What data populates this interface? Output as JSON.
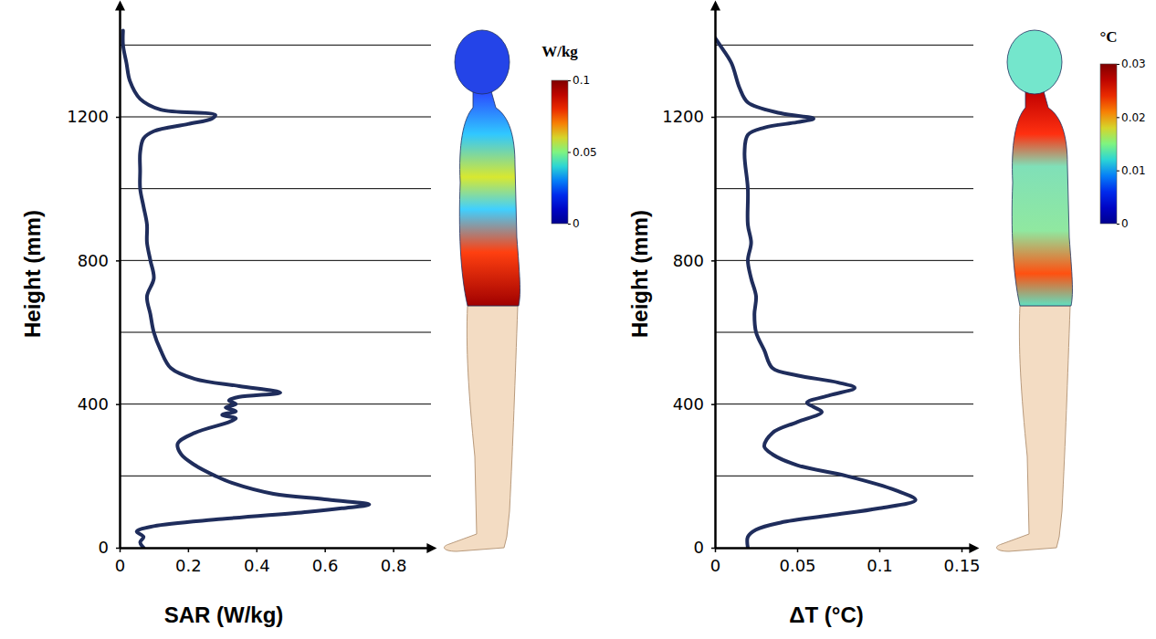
{
  "chart_data": [
    {
      "type": "line",
      "x_label": "SAR (W/kg)",
      "y_label": "Height (mm)",
      "xlim": [
        0,
        0.9
      ],
      "xticks": [
        0,
        0.2,
        0.4,
        0.6,
        0.8
      ],
      "ylim": [
        0,
        1500
      ],
      "yticks": [
        0,
        400,
        800,
        1200
      ],
      "grid": true,
      "ygrid": [
        200,
        400,
        600,
        800,
        1000,
        1200,
        1400
      ],
      "color": "#1f2d5c",
      "x": [
        0.07,
        0.06,
        0.07,
        0.05,
        0.1,
        0.3,
        0.55,
        0.65,
        0.73,
        0.6,
        0.45,
        0.33,
        0.28,
        0.22,
        0.18,
        0.17,
        0.22,
        0.32,
        0.34,
        0.3,
        0.34,
        0.31,
        0.34,
        0.32,
        0.35,
        0.47,
        0.35,
        0.22,
        0.15,
        0.12,
        0.1,
        0.09,
        0.08,
        0.1,
        0.09,
        0.08,
        0.08,
        0.07,
        0.06,
        0.06,
        0.06,
        0.07,
        0.1,
        0.2,
        0.27,
        0.28,
        0.12,
        0.06,
        0.03,
        0.02,
        0.01,
        0.01
      ],
      "values": [
        0,
        15,
        30,
        45,
        60,
        80,
        100,
        110,
        120,
        135,
        150,
        180,
        200,
        230,
        260,
        290,
        320,
        350,
        360,
        370,
        380,
        390,
        400,
        410,
        420,
        432,
        450,
        470,
        500,
        550,
        600,
        650,
        700,
        750,
        800,
        850,
        900,
        950,
        1000,
        1050,
        1100,
        1140,
        1160,
        1180,
        1195,
        1205,
        1220,
        1250,
        1300,
        1350,
        1400,
        1440
      ],
      "colorbar": {
        "label": "W/kg",
        "range": [
          0,
          0.1
        ],
        "ticks": [
          0,
          0.05,
          0.1
        ]
      }
    },
    {
      "type": "line",
      "x_label": "ΔT (°C)",
      "y_label": "Height (mm)",
      "xlim": [
        0,
        0.155
      ],
      "xticks": [
        0,
        0.05,
        0.1,
        0.15
      ],
      "ylim": [
        0,
        1500
      ],
      "yticks": [
        0,
        400,
        800,
        1200
      ],
      "grid": true,
      "ygrid": [
        200,
        400,
        600,
        800,
        1000,
        1200,
        1400
      ],
      "color": "#1f2d5c",
      "x": [
        0.02,
        0.02,
        0.025,
        0.04,
        0.07,
        0.1,
        0.122,
        0.11,
        0.08,
        0.05,
        0.035,
        0.03,
        0.035,
        0.05,
        0.065,
        0.06,
        0.056,
        0.07,
        0.085,
        0.075,
        0.05,
        0.035,
        0.03,
        0.025,
        0.024,
        0.025,
        0.022,
        0.02,
        0.022,
        0.02,
        0.02,
        0.018,
        0.02,
        0.03,
        0.05,
        0.06,
        0.04,
        0.02,
        0.015,
        0.01,
        0.003,
        0
      ],
      "values": [
        0,
        30,
        50,
        70,
        90,
        110,
        133,
        160,
        200,
        230,
        260,
        282,
        320,
        350,
        378,
        392,
        404,
        425,
        445,
        460,
        480,
        500,
        550,
        600,
        650,
        700,
        750,
        800,
        850,
        900,
        1000,
        1100,
        1150,
        1170,
        1185,
        1195,
        1210,
        1240,
        1280,
        1350,
        1400,
        1420
      ],
      "colorbar": {
        "label": "°C",
        "range": [
          0,
          0.03
        ],
        "ticks": [
          0,
          0.01,
          0.02,
          0.03
        ]
      }
    }
  ]
}
